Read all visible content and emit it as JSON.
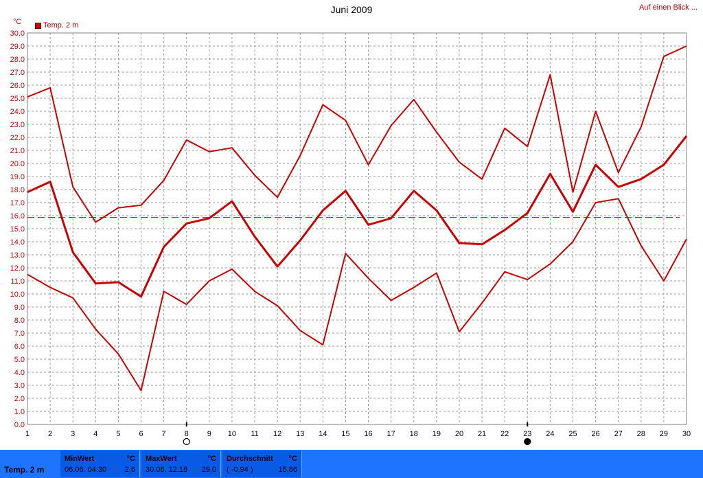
{
  "title": "Juni 2009",
  "link_label": "Auf einen Blick ...",
  "legend_label": "Temp. 2 m",
  "y_unit": "°C",
  "colors": {
    "series": "#cc0000",
    "grid": "#999999",
    "footer": "#1e74ff"
  },
  "markers": [
    {
      "day": 8,
      "icon": "open-circle-icon"
    },
    {
      "day": 23,
      "icon": "filled-circle-icon"
    }
  ],
  "footer": {
    "name": "Temp. 2 m",
    "min": {
      "label": "MinWert",
      "unit": "°C",
      "when": "06.06.  04:30",
      "value": "2,6"
    },
    "max": {
      "label": "MaxWert",
      "unit": "°C",
      "when": "30.06.  12:18",
      "value": "29,0"
    },
    "avg": {
      "label": "Durchschnitt",
      "unit": "°C",
      "delta": "( -0,94 )",
      "value": "15,86"
    }
  },
  "chart_data": {
    "type": "line",
    "title": "Juni 2009",
    "ylabel": "°C",
    "x": [
      1,
      2,
      3,
      4,
      5,
      6,
      7,
      8,
      9,
      10,
      11,
      12,
      13,
      14,
      15,
      16,
      17,
      18,
      19,
      20,
      21,
      22,
      23,
      24,
      25,
      26,
      27,
      28,
      29,
      30
    ],
    "ylim": [
      0,
      30
    ],
    "ytick_step": 1,
    "grid": true,
    "legend": "top-left",
    "average_line": 15.86,
    "series": [
      {
        "name": "Temp. 2 m",
        "role": "max",
        "values": [
          25.1,
          25.8,
          18.2,
          15.5,
          16.6,
          16.8,
          18.7,
          21.8,
          20.9,
          21.2,
          19.1,
          17.4,
          20.6,
          24.5,
          23.3,
          19.9,
          22.9,
          24.9,
          22.4,
          20.1,
          18.8,
          22.7,
          21.3,
          26.8,
          17.8,
          24.0,
          19.3,
          22.8,
          28.2,
          29.0
        ]
      },
      {
        "name": "Temp. 2 m",
        "role": "mean",
        "values": [
          17.8,
          18.6,
          13.2,
          10.8,
          10.9,
          9.8,
          13.6,
          15.4,
          15.8,
          17.1,
          14.4,
          12.1,
          14.1,
          16.4,
          17.9,
          15.3,
          15.8,
          17.9,
          16.4,
          13.9,
          13.8,
          14.9,
          16.2,
          19.2,
          16.3,
          19.9,
          18.2,
          18.8,
          19.9,
          22.1
        ]
      },
      {
        "name": "Temp. 2 m",
        "role": "min",
        "values": [
          11.5,
          10.5,
          9.7,
          7.3,
          5.4,
          2.6,
          10.2,
          9.2,
          11.0,
          11.9,
          10.2,
          9.1,
          7.2,
          6.1,
          13.1,
          11.2,
          9.5,
          10.5,
          11.6,
          7.1,
          9.3,
          11.7,
          11.1,
          12.3,
          14.0,
          17.0,
          17.3,
          13.7,
          11.0,
          14.2
        ]
      }
    ]
  }
}
